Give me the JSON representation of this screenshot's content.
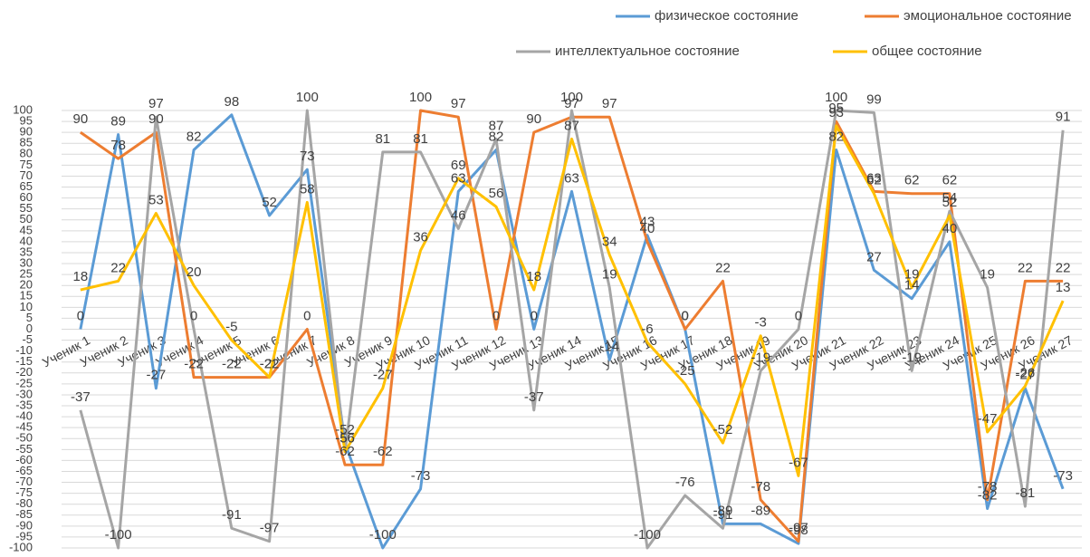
{
  "chart_data": {
    "type": "line",
    "categories": [
      "Ученик 1",
      "Ученик 2",
      "Ученик 3",
      "Ученик 4",
      "Ученик 5",
      "Ученик 6",
      "Ученик 7",
      "Ученик 8",
      "Ученик 9",
      "Ученик 10",
      "Ученик 11",
      "Ученик 12",
      "Ученик 13",
      "Ученик 14",
      "Ученик 15",
      "Ученик 16",
      "Ученик 17",
      "Ученик 18",
      "Ученик 19",
      "Ученик 20",
      "Ученик 21",
      "Ученик 22",
      "Ученик 23",
      "Ученик 24",
      "Ученик 25",
      "Ученик 26",
      "Ученик 27"
    ],
    "series": [
      {
        "name": "физическое состояние",
        "color": "#5b9bd5",
        "values": [
          0,
          89,
          -27,
          82,
          98,
          52,
          73,
          -52,
          -100,
          -73,
          63,
          82,
          0,
          63,
          -14,
          43,
          0,
          -89,
          -89,
          -98,
          82,
          27,
          14,
          40,
          -82,
          -27,
          -73
        ]
      },
      {
        "name": "эмоциональное состояние",
        "color": "#ed7d31",
        "values": [
          90,
          78,
          90,
          -22,
          -22,
          -22,
          0,
          -62,
          -62,
          100,
          97,
          0,
          90,
          97,
          97,
          40,
          0,
          22,
          -78,
          -97,
          95,
          63,
          62,
          62,
          -78,
          22,
          22
        ]
      },
      {
        "name": "интеллектуальное состояние",
        "color": "#a5a5a5",
        "values": [
          -37,
          -100,
          97,
          0,
          -91,
          -97,
          100,
          -56,
          81,
          81,
          46,
          87,
          -37,
          100,
          19,
          -100,
          -76,
          -91,
          -19,
          0,
          100,
          99,
          -19,
          54,
          19,
          -81,
          91
        ]
      },
      {
        "name": "общее состояние",
        "color": "#ffc000",
        "values": [
          18,
          22,
          53,
          20,
          -5,
          -22,
          58,
          -56,
          -27,
          36,
          69,
          56,
          18,
          87,
          34,
          -6,
          -25,
          -52,
          -3,
          -67,
          93,
          62,
          19,
          52,
          -47,
          -26,
          13
        ]
      }
    ],
    "ylim": [
      -100,
      100
    ],
    "yticks": [
      -100,
      -95,
      -90,
      -85,
      -80,
      -75,
      -70,
      -65,
      -60,
      -55,
      -50,
      -45,
      -40,
      -35,
      -30,
      -25,
      -20,
      -15,
      -10,
      -5,
      0,
      5,
      10,
      15,
      20,
      25,
      30,
      35,
      40,
      45,
      50,
      55,
      60,
      65,
      70,
      75,
      80,
      85,
      90,
      95,
      100
    ],
    "grid": true
  }
}
